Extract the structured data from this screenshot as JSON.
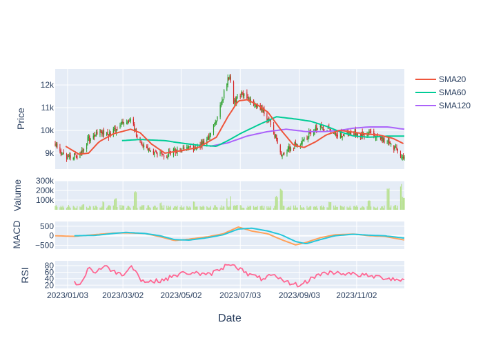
{
  "chart_data": {
    "type": "candlestick",
    "xlabel": "Date",
    "x_tick_labels": [
      "2023/01/03",
      "2023/03/02",
      "2023/05/02",
      "2023/07/03",
      "2023/09/03",
      "2023/11/02"
    ],
    "x_range": [
      "2022-12-21",
      "2023-12-22"
    ],
    "grid": true,
    "legend_position": "top-right",
    "colors": {
      "plot_bg": "#e5ecf6",
      "grid": "#ffffff",
      "increasing": "#2ca02c",
      "decreasing": "#d62728",
      "volume": "#b5e08a",
      "sma20": "#ef553b",
      "sma60": "#00cc96",
      "sma120": "#ab63fa",
      "macd": "#26c6da",
      "signal": "#ffa15a",
      "rsi": "#ff6692"
    },
    "legend": [
      {
        "key": "sma20",
        "name": "SMA20"
      },
      {
        "key": "sma60",
        "name": "SMA60"
      },
      {
        "key": "sma120",
        "name": "SMA120"
      }
    ],
    "panels": {
      "price": {
        "ylabel": "Price",
        "y_range": [
          8300,
          12700
        ],
        "y_ticks": [
          {
            "value": 9000,
            "label": "9k"
          },
          {
            "value": 10000,
            "label": "10k"
          },
          {
            "value": 11000,
            "label": "11k"
          },
          {
            "value": 12000,
            "label": "12k"
          }
        ],
        "close_path": [
          [
            "2022-12-21",
            9400
          ],
          [
            "2023-01-01",
            8800
          ],
          [
            "2023-01-15",
            8900
          ],
          [
            "2023-01-25",
            9600
          ],
          [
            "2023-02-05",
            10000
          ],
          [
            "2023-02-15",
            9800
          ],
          [
            "2023-03-01",
            10300
          ],
          [
            "2023-03-10",
            10400
          ],
          [
            "2023-03-20",
            9500
          ],
          [
            "2023-04-01",
            9000
          ],
          [
            "2023-04-15",
            8900
          ],
          [
            "2023-05-01",
            9200
          ],
          [
            "2023-05-15",
            9200
          ],
          [
            "2023-05-28",
            9500
          ],
          [
            "2023-06-08",
            10500
          ],
          [
            "2023-06-15",
            11500
          ],
          [
            "2023-06-22",
            12500
          ],
          [
            "2023-06-26",
            11200
          ],
          [
            "2023-07-05",
            11600
          ],
          [
            "2023-07-15",
            11300
          ],
          [
            "2023-07-25",
            11000
          ],
          [
            "2023-08-05",
            10200
          ],
          [
            "2023-08-15",
            9000
          ],
          [
            "2023-08-25",
            9200
          ],
          [
            "2023-09-05",
            9500
          ],
          [
            "2023-09-15",
            9900
          ],
          [
            "2023-09-25",
            10200
          ],
          [
            "2023-10-05",
            10000
          ],
          [
            "2023-10-15",
            9800
          ],
          [
            "2023-10-25",
            9900
          ],
          [
            "2023-11-05",
            9800
          ],
          [
            "2023-11-15",
            9900
          ],
          [
            "2023-11-25",
            9700
          ],
          [
            "2023-12-05",
            9500
          ],
          [
            "2023-12-15",
            9100
          ],
          [
            "2023-12-22",
            8800
          ]
        ],
        "sma20": [
          [
            "2023-01-01",
            9300
          ],
          [
            "2023-01-15",
            8950
          ],
          [
            "2023-01-25",
            9000
          ],
          [
            "2023-02-05",
            9500
          ],
          [
            "2023-02-20",
            9850
          ],
          [
            "2023-03-10",
            10050
          ],
          [
            "2023-03-20",
            9900
          ],
          [
            "2023-04-01",
            9400
          ],
          [
            "2023-04-15",
            9000
          ],
          [
            "2023-05-01",
            9100
          ],
          [
            "2023-05-20",
            9250
          ],
          [
            "2023-06-08",
            9700
          ],
          [
            "2023-06-20",
            10600
          ],
          [
            "2023-07-01",
            11300
          ],
          [
            "2023-07-10",
            11350
          ],
          [
            "2023-07-20",
            11150
          ],
          [
            "2023-08-01",
            10800
          ],
          [
            "2023-08-15",
            10000
          ],
          [
            "2023-08-28",
            9350
          ],
          [
            "2023-09-08",
            9250
          ],
          [
            "2023-09-20",
            9500
          ],
          [
            "2023-10-01",
            9800
          ],
          [
            "2023-10-15",
            10000
          ],
          [
            "2023-10-25",
            9950
          ],
          [
            "2023-11-10",
            9850
          ],
          [
            "2023-11-25",
            9800
          ],
          [
            "2023-12-10",
            9650
          ],
          [
            "2023-12-22",
            9400
          ]
        ],
        "sma60": [
          [
            "2023-03-01",
            9550
          ],
          [
            "2023-03-20",
            9600
          ],
          [
            "2023-04-15",
            9550
          ],
          [
            "2023-05-01",
            9450
          ],
          [
            "2023-05-20",
            9350
          ],
          [
            "2023-06-08",
            9300
          ],
          [
            "2023-06-20",
            9550
          ],
          [
            "2023-07-05",
            9900
          ],
          [
            "2023-07-25",
            10300
          ],
          [
            "2023-08-10",
            10600
          ],
          [
            "2023-08-30",
            10500
          ],
          [
            "2023-09-15",
            10400
          ],
          [
            "2023-09-30",
            10200
          ],
          [
            "2023-10-15",
            9950
          ],
          [
            "2023-10-30",
            9750
          ],
          [
            "2023-11-15",
            9700
          ],
          [
            "2023-12-05",
            9750
          ],
          [
            "2023-12-22",
            9750
          ]
        ],
        "sma120": [
          [
            "2023-06-01",
            9300
          ],
          [
            "2023-06-20",
            9450
          ],
          [
            "2023-07-10",
            9750
          ],
          [
            "2023-08-01",
            9950
          ],
          [
            "2023-08-20",
            10050
          ],
          [
            "2023-09-10",
            9950
          ],
          [
            "2023-09-30",
            9950
          ],
          [
            "2023-10-15",
            10000
          ],
          [
            "2023-10-30",
            10100
          ],
          [
            "2023-11-15",
            10150
          ],
          [
            "2023-12-05",
            10150
          ],
          [
            "2023-12-22",
            10050
          ]
        ]
      },
      "volume": {
        "ylabel": "Valume",
        "y_range": [
          0,
          300000
        ],
        "y_ticks": [
          {
            "value": 100000,
            "label": "100k"
          },
          {
            "value": 200000,
            "label": "200k"
          },
          {
            "value": 300000,
            "label": "300k"
          }
        ],
        "spikes": [
          [
            "2023-01-20",
            60000
          ],
          [
            "2023-02-10",
            90000
          ],
          [
            "2023-02-22",
            120000
          ],
          [
            "2023-03-15",
            200000
          ],
          [
            "2023-04-10",
            80000
          ],
          [
            "2023-05-15",
            90000
          ],
          [
            "2023-06-18",
            120000
          ],
          [
            "2023-06-24",
            140000
          ],
          [
            "2023-08-10",
            150000
          ],
          [
            "2023-08-15",
            220000
          ],
          [
            "2023-10-05",
            90000
          ],
          [
            "2023-11-15",
            100000
          ],
          [
            "2023-12-05",
            230000
          ],
          [
            "2023-12-18",
            280000
          ],
          [
            "2023-12-21",
            140000
          ]
        ]
      },
      "macd": {
        "ylabel": "MACD",
        "y_range": [
          -700,
          750
        ],
        "y_ticks": [
          {
            "value": -500,
            "label": "−500"
          },
          {
            "value": 0,
            "label": "0"
          },
          {
            "value": 500,
            "label": "500"
          }
        ],
        "macd": [
          [
            "2023-01-10",
            0
          ],
          [
            "2023-02-01",
            20
          ],
          [
            "2023-02-20",
            120
          ],
          [
            "2023-03-05",
            180
          ],
          [
            "2023-03-25",
            120
          ],
          [
            "2023-04-10",
            0
          ],
          [
            "2023-04-25",
            -200
          ],
          [
            "2023-05-10",
            -230
          ],
          [
            "2023-05-30",
            -100
          ],
          [
            "2023-06-15",
            50
          ],
          [
            "2023-07-01",
            350
          ],
          [
            "2023-07-15",
            400
          ],
          [
            "2023-08-01",
            250
          ],
          [
            "2023-08-15",
            50
          ],
          [
            "2023-08-30",
            -300
          ],
          [
            "2023-09-10",
            -420
          ],
          [
            "2023-09-25",
            -200
          ],
          [
            "2023-10-10",
            0
          ],
          [
            "2023-10-30",
            80
          ],
          [
            "2023-11-15",
            30
          ],
          [
            "2023-12-01",
            0
          ],
          [
            "2023-12-22",
            -120
          ]
        ],
        "signal": [
          [
            "2022-12-21",
            0
          ],
          [
            "2023-01-10",
            -30
          ],
          [
            "2023-02-01",
            60
          ],
          [
            "2023-02-20",
            140
          ],
          [
            "2023-03-05",
            150
          ],
          [
            "2023-03-25",
            120
          ],
          [
            "2023-04-10",
            -50
          ],
          [
            "2023-04-25",
            -250
          ],
          [
            "2023-05-10",
            -180
          ],
          [
            "2023-05-30",
            -50
          ],
          [
            "2023-06-15",
            100
          ],
          [
            "2023-07-01",
            460
          ],
          [
            "2023-07-15",
            250
          ],
          [
            "2023-08-01",
            100
          ],
          [
            "2023-08-15",
            -200
          ],
          [
            "2023-08-30",
            -480
          ],
          [
            "2023-09-10",
            -350
          ],
          [
            "2023-09-25",
            -100
          ],
          [
            "2023-10-10",
            50
          ],
          [
            "2023-10-30",
            90
          ],
          [
            "2023-11-15",
            0
          ],
          [
            "2023-12-01",
            -30
          ],
          [
            "2023-12-22",
            -220
          ]
        ]
      },
      "rsi": {
        "ylabel": "RSI",
        "y_range": [
          10,
          95
        ],
        "y_ticks": [
          {
            "value": 20,
            "label": "20"
          },
          {
            "value": 40,
            "label": "40"
          },
          {
            "value": 60,
            "label": "60"
          },
          {
            "value": 80,
            "label": "80"
          }
        ],
        "values": [
          [
            "2023-01-10",
            30
          ],
          [
            "2023-01-15",
            22
          ],
          [
            "2023-01-20",
            40
          ],
          [
            "2023-01-25",
            75
          ],
          [
            "2023-02-01",
            60
          ],
          [
            "2023-02-10",
            78
          ],
          [
            "2023-02-20",
            65
          ],
          [
            "2023-03-01",
            50
          ],
          [
            "2023-03-10",
            80
          ],
          [
            "2023-03-15",
            70
          ],
          [
            "2023-03-20",
            35
          ],
          [
            "2023-04-01",
            30
          ],
          [
            "2023-04-15",
            38
          ],
          [
            "2023-05-01",
            55
          ],
          [
            "2023-05-15",
            60
          ],
          [
            "2023-05-28",
            50
          ],
          [
            "2023-06-10",
            65
          ],
          [
            "2023-06-22",
            88
          ],
          [
            "2023-06-28",
            80
          ],
          [
            "2023-07-10",
            55
          ],
          [
            "2023-07-25",
            40
          ],
          [
            "2023-08-05",
            50
          ],
          [
            "2023-08-15",
            35
          ],
          [
            "2023-08-25",
            25
          ],
          [
            "2023-09-05",
            20
          ],
          [
            "2023-09-15",
            40
          ],
          [
            "2023-09-25",
            55
          ],
          [
            "2023-10-10",
            60
          ],
          [
            "2023-10-25",
            55
          ],
          [
            "2023-11-10",
            50
          ],
          [
            "2023-11-25",
            45
          ],
          [
            "2023-12-10",
            40
          ],
          [
            "2023-12-22",
            35
          ]
        ]
      }
    }
  }
}
